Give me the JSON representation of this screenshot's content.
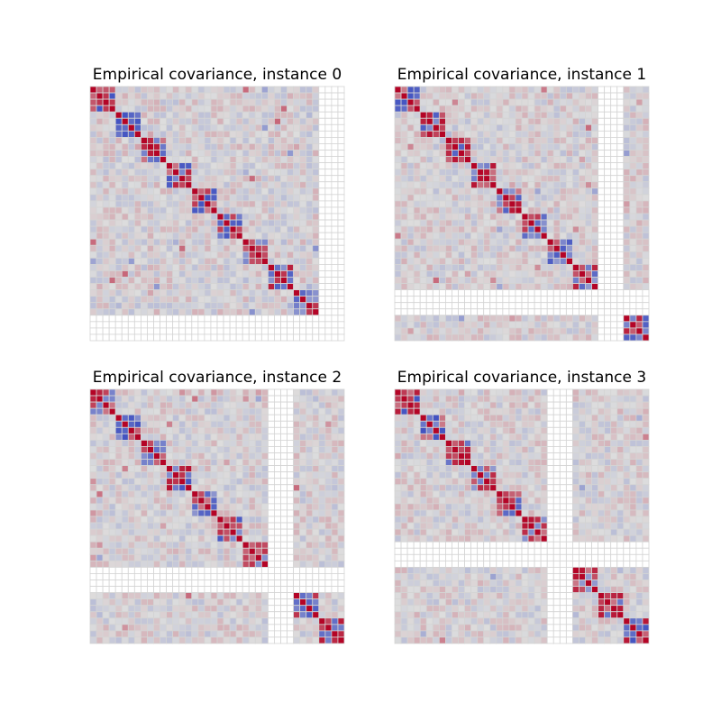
{
  "figure": {
    "background": "#ffffff"
  },
  "chart_data": [
    {
      "type": "heatmap",
      "title": "Empirical covariance, instance 0",
      "matrix_size": 40,
      "active_block": [
        0,
        36
      ],
      "masked_block": [
        36,
        40
      ],
      "blocks": [
        [
          0,
          36
        ]
      ],
      "colormap": "coolwarm",
      "masked_color": "#ffffff",
      "cell_border": "#d4d4d4",
      "axes_visible": false
    },
    {
      "type": "heatmap",
      "title": "Empirical covariance, instance 1",
      "matrix_size": 40,
      "active_block": [
        0,
        32
      ],
      "masked_block": [
        32,
        36
      ],
      "blocks": [
        [
          0,
          32
        ],
        [
          36,
          40
        ]
      ],
      "colormap": "coolwarm",
      "masked_color": "#ffffff",
      "cell_border": "#d4d4d4",
      "axes_visible": false
    },
    {
      "type": "heatmap",
      "title": "Empirical covariance, instance 2",
      "matrix_size": 40,
      "active_block": [
        0,
        28
      ],
      "masked_block": [
        28,
        32
      ],
      "blocks": [
        [
          0,
          28
        ],
        [
          32,
          40
        ]
      ],
      "colormap": "coolwarm",
      "masked_color": "#ffffff",
      "cell_border": "#d4d4d4",
      "axes_visible": false
    },
    {
      "type": "heatmap",
      "title": "Empirical covariance, instance 3",
      "matrix_size": 40,
      "active_block": [
        0,
        24
      ],
      "masked_block": [
        24,
        28
      ],
      "blocks": [
        [
          0,
          24
        ],
        [
          28,
          40
        ]
      ],
      "colormap": "coolwarm",
      "masked_color": "#ffffff",
      "cell_border": "#d4d4d4",
      "axes_visible": false
    }
  ]
}
